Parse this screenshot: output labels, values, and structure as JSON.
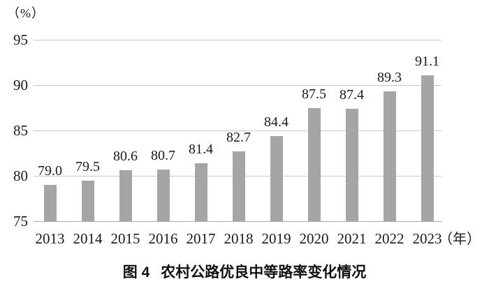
{
  "chart_data": {
    "type": "bar",
    "title": "农村公路优良中等路率变化情况",
    "figure_label": "图 4",
    "categories": [
      "2013",
      "2014",
      "2015",
      "2016",
      "2017",
      "2018",
      "2019",
      "2020",
      "2021",
      "2022",
      "2023"
    ],
    "values": [
      79.0,
      79.5,
      80.6,
      80.7,
      81.4,
      82.7,
      84.4,
      87.5,
      87.4,
      89.3,
      91.1
    ],
    "value_labels": [
      "79.0",
      "79.5",
      "80.6",
      "80.7",
      "81.4",
      "82.7",
      "84.4",
      "87.5",
      "87.4",
      "89.3",
      "91.1"
    ],
    "ylabel": "（%）",
    "xlabel": "（年）",
    "ylim": [
      75,
      95
    ],
    "yticks": [
      75,
      80,
      85,
      90,
      95
    ],
    "grid": "horizontal",
    "legend": "none",
    "bar_color": "#a5a5a5",
    "gridline_color": "#c9c9c9"
  }
}
